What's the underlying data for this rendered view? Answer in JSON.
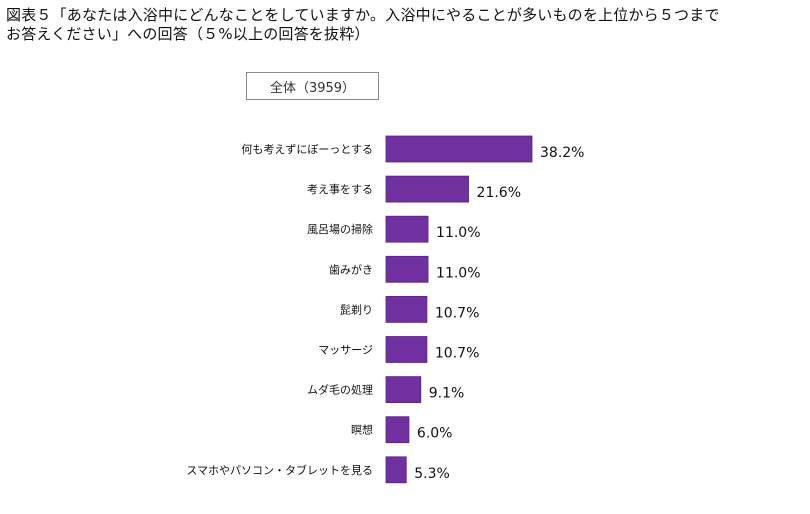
{
  "title": "図表５「あなたは入浴中にどんなことをしていますか。入浴中にやることが多いものを上位から５つまで\nお答えください」への回答（５%以上の回答を抜粋）",
  "badge": "全体（3959）",
  "chart_data": {
    "type": "bar",
    "orientation": "horizontal",
    "title": "図表５「あなたは入浴中にどんなことをしていますか。入浴中にやることが多いものを上位から５つまでお答えください」への回答（５%以上の回答を抜粋）",
    "subtitle": "全体（3959）",
    "categories": [
      "何も考えずにぼーっとする",
      "考え事をする",
      "風呂場の掃除",
      "歯みがき",
      "髭剃り",
      "マッサージ",
      "ムダ毛の処理",
      "瞑想",
      "スマホやパソコン・タブレットを見る"
    ],
    "values": [
      38.2,
      21.6,
      11.0,
      11.0,
      10.7,
      10.7,
      9.1,
      6.0,
      5.3
    ],
    "value_labels": [
      "38.2%",
      "21.6%",
      "11.0%",
      "11.0%",
      "10.7%",
      "10.7%",
      "9.1%",
      "6.0%",
      "5.3%"
    ],
    "unit": "%",
    "bar_color": "#7030a0",
    "xlim": [
      0,
      38.2
    ],
    "grid": false,
    "legend": "none"
  }
}
